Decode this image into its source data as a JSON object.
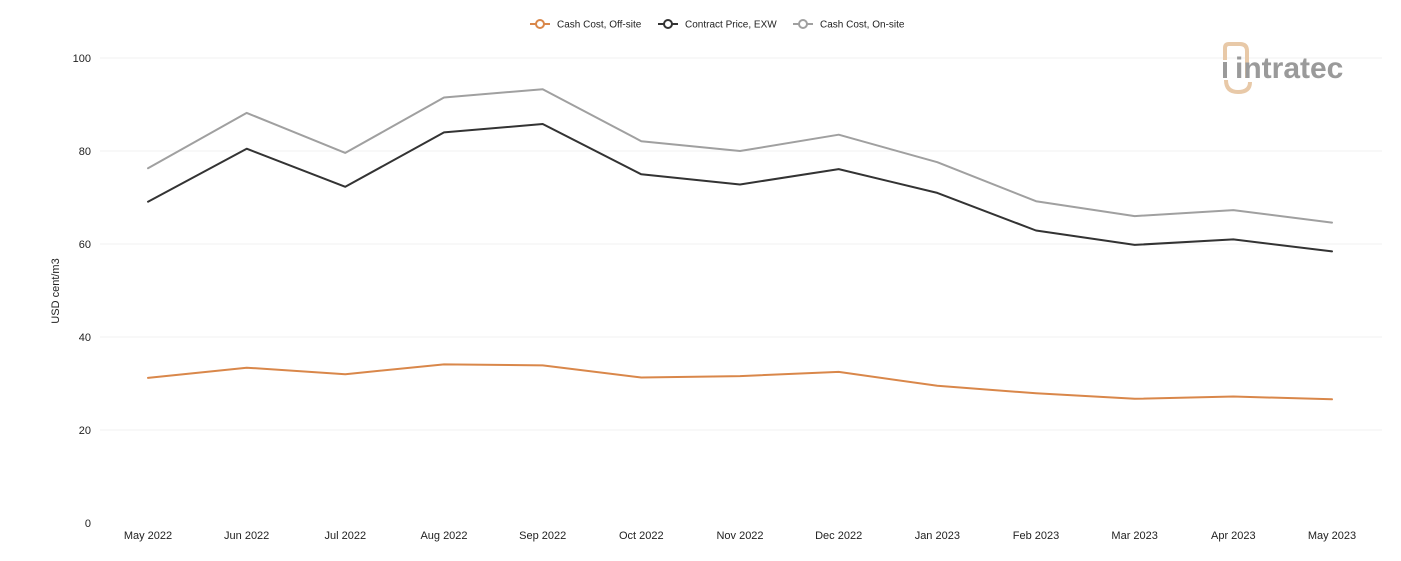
{
  "chart_data": {
    "type": "line",
    "title": "",
    "xlabel": "",
    "ylabel": "USD cent/m3",
    "ylim": [
      0,
      100
    ],
    "yticks": [
      0,
      20,
      40,
      60,
      80,
      100
    ],
    "grid": true,
    "legend_position": "top-center",
    "categories": [
      "May 2022",
      "Jun 2022",
      "Jul 2022",
      "Aug 2022",
      "Sep 2022",
      "Oct 2022",
      "Nov 2022",
      "Dec 2022",
      "Jan 2023",
      "Feb 2023",
      "Mar 2023",
      "Apr 2023",
      "May 2023"
    ],
    "series": [
      {
        "name": "Cash Cost, Off-site",
        "color": "#d9874a",
        "values": [
          31.2,
          33.4,
          32.0,
          34.1,
          33.9,
          31.3,
          31.6,
          32.5,
          29.5,
          27.9,
          26.7,
          27.2,
          26.6
        ]
      },
      {
        "name": "Contract Price, EXW",
        "color": "#333333",
        "values": [
          69.1,
          80.5,
          72.3,
          84.0,
          85.8,
          75.0,
          72.8,
          76.1,
          71.0,
          62.9,
          59.8,
          61.0,
          58.4
        ]
      },
      {
        "name": "Cash Cost, On-site",
        "color": "#a0a0a0",
        "values": [
          76.3,
          88.2,
          79.6,
          91.5,
          93.3,
          82.1,
          80.0,
          83.5,
          77.6,
          69.2,
          66.0,
          67.3,
          64.6
        ]
      }
    ]
  },
  "watermark": {
    "text": "intratec",
    "text_color": "#9a9a9a",
    "accent_color": "#e8c9a8"
  }
}
